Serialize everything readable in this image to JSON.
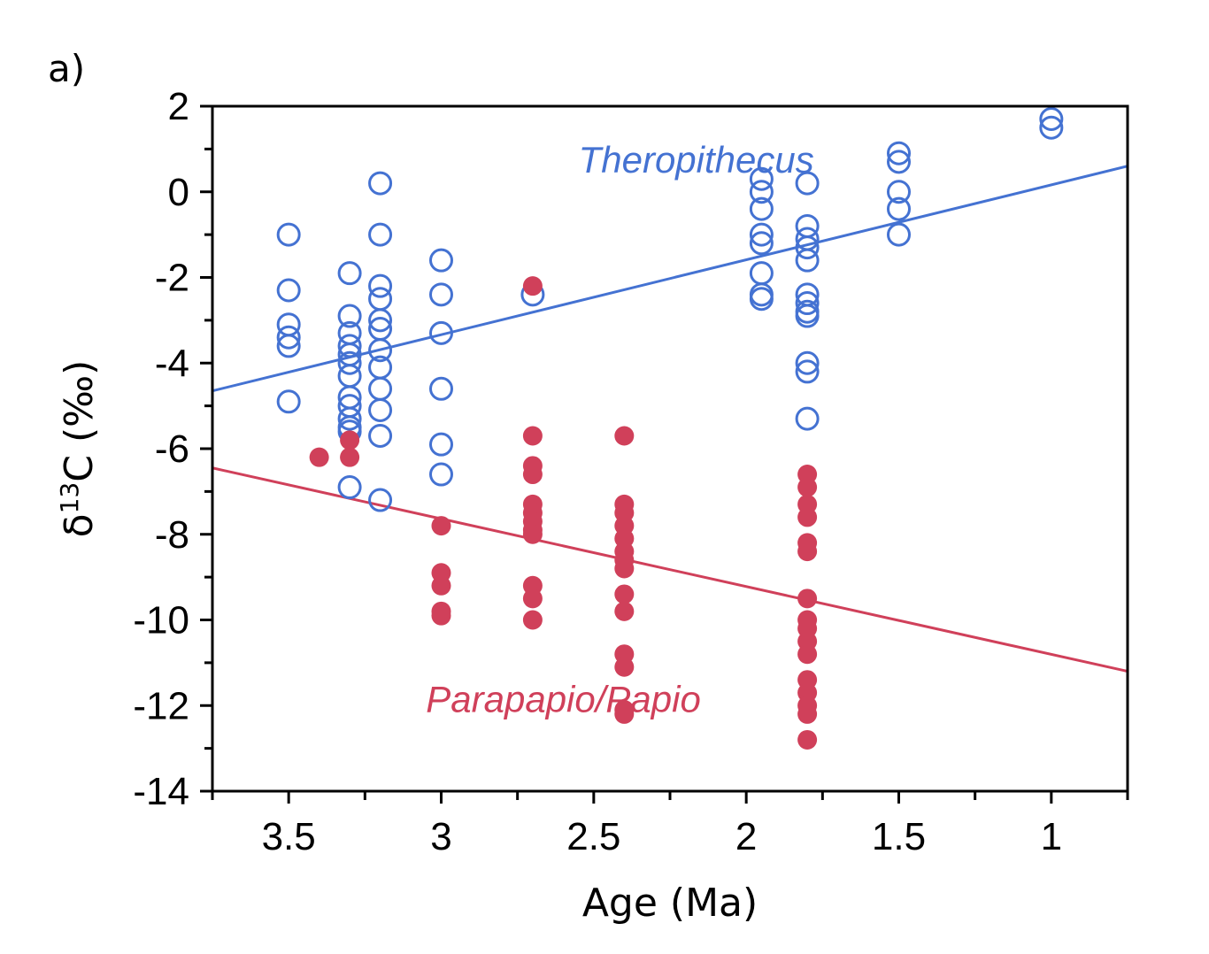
{
  "chart_data": {
    "type": "scatter",
    "panel_label": "a)",
    "xlabel": "Age (Ma)",
    "ylabel_prefix": "δ",
    "ylabel_sup": "13",
    "ylabel_suffix": "C (‰)",
    "xlim": [
      3.75,
      0.75
    ],
    "ylim": [
      -14,
      2
    ],
    "x_reversed": true,
    "x_ticks": [
      3.5,
      3,
      2.5,
      2,
      1.5,
      1
    ],
    "x_tick_labels": [
      "3.5",
      "3",
      "2.5",
      "2",
      "1.5",
      "1"
    ],
    "y_ticks": [
      2,
      0,
      -2,
      -4,
      -6,
      -8,
      -10,
      -12,
      -14
    ],
    "y_tick_labels": [
      "2",
      "0",
      "-2",
      "-4",
      "-6",
      "-8",
      "-10",
      "-12",
      "-14"
    ],
    "grid": false,
    "series": [
      {
        "name": "Theropithecus",
        "color": "#4472d2",
        "marker": "open-circle",
        "points": [
          [
            3.5,
            -1.0
          ],
          [
            3.5,
            -2.3
          ],
          [
            3.5,
            -3.1
          ],
          [
            3.5,
            -3.4
          ],
          [
            3.5,
            -3.6
          ],
          [
            3.5,
            -4.9
          ],
          [
            3.3,
            -1.9
          ],
          [
            3.3,
            -2.9
          ],
          [
            3.3,
            -3.3
          ],
          [
            3.3,
            -3.6
          ],
          [
            3.3,
            -3.8
          ],
          [
            3.3,
            -4.0
          ],
          [
            3.3,
            -4.3
          ],
          [
            3.3,
            -4.8
          ],
          [
            3.3,
            -5.0
          ],
          [
            3.3,
            -5.3
          ],
          [
            3.3,
            -5.5
          ],
          [
            3.3,
            -5.6
          ],
          [
            3.3,
            -6.9
          ],
          [
            3.2,
            0.2
          ],
          [
            3.2,
            -1.0
          ],
          [
            3.2,
            -2.2
          ],
          [
            3.2,
            -2.5
          ],
          [
            3.2,
            -3.0
          ],
          [
            3.2,
            -3.2
          ],
          [
            3.2,
            -3.7
          ],
          [
            3.2,
            -4.1
          ],
          [
            3.2,
            -4.6
          ],
          [
            3.2,
            -5.1
          ],
          [
            3.2,
            -5.7
          ],
          [
            3.2,
            -7.2
          ],
          [
            3.0,
            -1.6
          ],
          [
            3.0,
            -2.4
          ],
          [
            3.0,
            -3.3
          ],
          [
            3.0,
            -4.6
          ],
          [
            3.0,
            -5.9
          ],
          [
            3.0,
            -6.6
          ],
          [
            2.7,
            -2.4
          ],
          [
            1.95,
            0.3
          ],
          [
            1.95,
            0.0
          ],
          [
            1.95,
            -0.4
          ],
          [
            1.95,
            -1.0
          ],
          [
            1.95,
            -1.2
          ],
          [
            1.95,
            -1.9
          ],
          [
            1.95,
            -2.4
          ],
          [
            1.95,
            -2.5
          ],
          [
            1.8,
            0.2
          ],
          [
            1.8,
            -0.8
          ],
          [
            1.8,
            -1.1
          ],
          [
            1.8,
            -1.3
          ],
          [
            1.8,
            -1.6
          ],
          [
            1.8,
            -2.4
          ],
          [
            1.8,
            -2.6
          ],
          [
            1.8,
            -2.8
          ],
          [
            1.8,
            -2.9
          ],
          [
            1.8,
            -4.0
          ],
          [
            1.8,
            -4.2
          ],
          [
            1.8,
            -5.3
          ],
          [
            1.5,
            0.9
          ],
          [
            1.5,
            0.7
          ],
          [
            1.5,
            0.0
          ],
          [
            1.5,
            -0.4
          ],
          [
            1.5,
            -1.0
          ],
          [
            1.0,
            1.7
          ],
          [
            1.0,
            1.5
          ]
        ],
        "trend": [
          [
            3.75,
            -4.65
          ],
          [
            0.75,
            0.6
          ]
        ]
      },
      {
        "name": "Parapapio/Papio",
        "color": "#d0405a",
        "marker": "filled-circle",
        "points": [
          [
            3.4,
            -6.2
          ],
          [
            3.3,
            -5.8
          ],
          [
            3.3,
            -6.2
          ],
          [
            3.0,
            -7.8
          ],
          [
            3.0,
            -8.9
          ],
          [
            3.0,
            -9.2
          ],
          [
            3.0,
            -9.8
          ],
          [
            3.0,
            -9.9
          ],
          [
            2.7,
            -2.2
          ],
          [
            2.7,
            -5.7
          ],
          [
            2.7,
            -6.4
          ],
          [
            2.7,
            -6.6
          ],
          [
            2.7,
            -7.3
          ],
          [
            2.7,
            -7.5
          ],
          [
            2.7,
            -7.7
          ],
          [
            2.7,
            -7.9
          ],
          [
            2.7,
            -8.0
          ],
          [
            2.7,
            -9.2
          ],
          [
            2.7,
            -9.5
          ],
          [
            2.7,
            -10.0
          ],
          [
            2.4,
            -5.7
          ],
          [
            2.4,
            -7.3
          ],
          [
            2.4,
            -7.5
          ],
          [
            2.4,
            -7.8
          ],
          [
            2.4,
            -8.1
          ],
          [
            2.4,
            -8.4
          ],
          [
            2.4,
            -8.6
          ],
          [
            2.4,
            -8.8
          ],
          [
            2.4,
            -9.4
          ],
          [
            2.4,
            -9.8
          ],
          [
            2.4,
            -10.8
          ],
          [
            2.4,
            -11.1
          ],
          [
            2.4,
            -12.1
          ],
          [
            2.4,
            -12.2
          ],
          [
            1.8,
            -6.6
          ],
          [
            1.8,
            -6.9
          ],
          [
            1.8,
            -7.3
          ],
          [
            1.8,
            -7.6
          ],
          [
            1.8,
            -8.2
          ],
          [
            1.8,
            -8.4
          ],
          [
            1.8,
            -9.5
          ],
          [
            1.8,
            -10.0
          ],
          [
            1.8,
            -10.2
          ],
          [
            1.8,
            -10.5
          ],
          [
            1.8,
            -10.8
          ],
          [
            1.8,
            -11.4
          ],
          [
            1.8,
            -11.7
          ],
          [
            1.8,
            -12.0
          ],
          [
            1.8,
            -12.2
          ],
          [
            1.8,
            -12.8
          ]
        ],
        "trend": [
          [
            3.75,
            -6.45
          ],
          [
            0.75,
            -11.2
          ]
        ]
      }
    ],
    "annotations": [
      {
        "text": "Theropithecus",
        "x": 2.55,
        "y": 0.45,
        "series": 0
      },
      {
        "text": "Parapapio/Papio",
        "x": 3.05,
        "y": -12.15,
        "series": 1
      }
    ]
  }
}
